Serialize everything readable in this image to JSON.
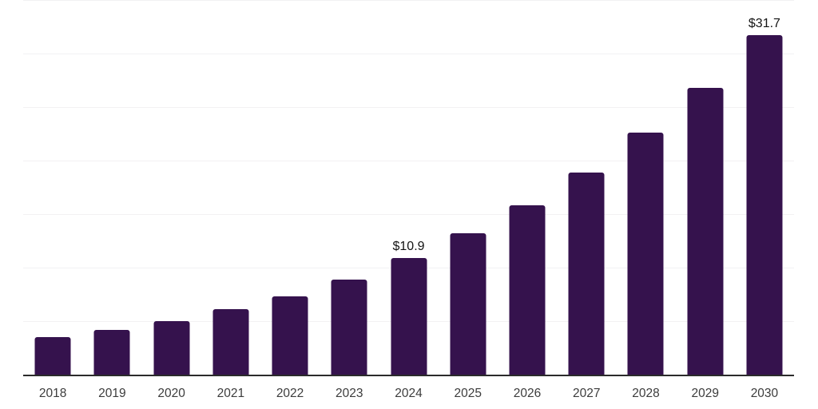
{
  "chart_data": {
    "type": "bar",
    "title": "",
    "categories": [
      "2018",
      "2019",
      "2020",
      "2021",
      "2022",
      "2023",
      "2024",
      "2025",
      "2026",
      "2027",
      "2028",
      "2029",
      "2030"
    ],
    "values": [
      3.5,
      4.2,
      5.0,
      6.1,
      7.3,
      8.9,
      10.9,
      13.2,
      15.8,
      18.9,
      22.6,
      26.8,
      31.7
    ],
    "data_labels": [
      "",
      "",
      "",
      "",
      "",
      "",
      "$10.9",
      "",
      "",
      "",
      "",
      "",
      "$31.7"
    ],
    "xlabel": "",
    "ylabel": "",
    "ylim": [
      0,
      35
    ],
    "gridline_step": 5,
    "grid": "horizontal",
    "legend_position": "none",
    "bar_color": "#35124d",
    "axis_color": "#2b2b2b",
    "gridline_color": "#f2f1f3",
    "tick_label_color": "#3c3c3c",
    "data_label_color": "#141414"
  }
}
